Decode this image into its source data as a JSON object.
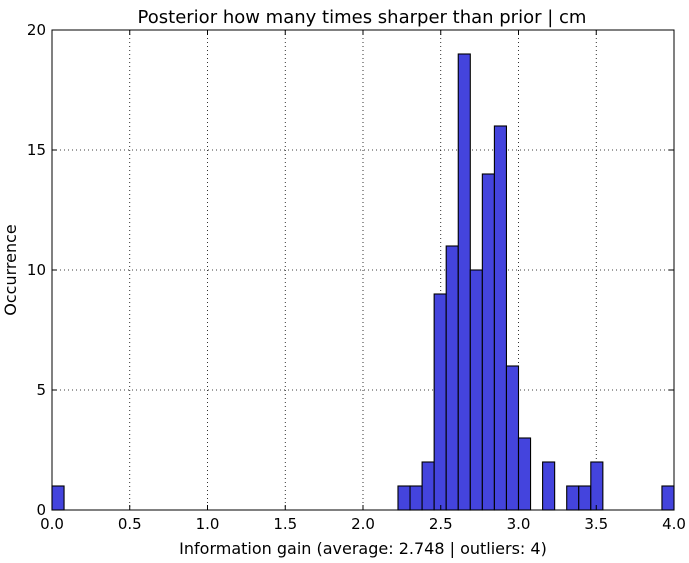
{
  "chart_data": {
    "type": "bar",
    "title": "Posterior how many times sharper than prior | cm",
    "xlabel": "Information gain (average: 2.748 | outliers: 4)",
    "ylabel": "Occurrence",
    "xlim": [
      0.0,
      4.0
    ],
    "ylim": [
      0,
      20
    ],
    "xticks": [
      "0.0",
      "0.5",
      "1.0",
      "1.5",
      "2.0",
      "2.5",
      "3.0",
      "3.5",
      "4.0"
    ],
    "yticks": [
      "0",
      "5",
      "10",
      "15",
      "20"
    ],
    "grid": true,
    "bar_color": "#4444dd",
    "bin_width": 0.0775,
    "bins": [
      {
        "x": 0.0,
        "count": 1
      },
      {
        "x": 2.225,
        "count": 1
      },
      {
        "x": 2.3025,
        "count": 1
      },
      {
        "x": 2.38,
        "count": 2
      },
      {
        "x": 2.4575,
        "count": 9
      },
      {
        "x": 2.535,
        "count": 11
      },
      {
        "x": 2.6125,
        "count": 19
      },
      {
        "x": 2.69,
        "count": 10
      },
      {
        "x": 2.7675,
        "count": 14
      },
      {
        "x": 2.845,
        "count": 16
      },
      {
        "x": 2.9225,
        "count": 6
      },
      {
        "x": 3.0,
        "count": 3
      },
      {
        "x": 3.155,
        "count": 2
      },
      {
        "x": 3.31,
        "count": 1
      },
      {
        "x": 3.3875,
        "count": 1
      },
      {
        "x": 3.465,
        "count": 2
      },
      {
        "x": 3.9225,
        "count": 1
      }
    ]
  }
}
